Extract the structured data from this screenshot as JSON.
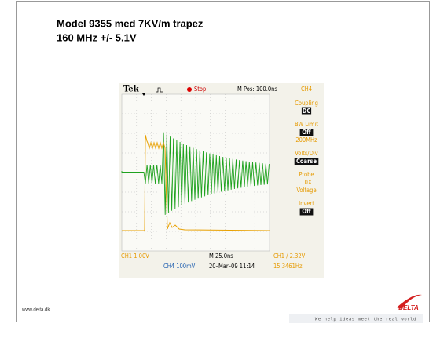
{
  "title_lines": [
    "Model 9355 med 7KV/m trapez",
    "160 MHz +/- 5.1V"
  ],
  "scope": {
    "brand": "Tek",
    "state": "Stop",
    "position": "M Pos: 100.0ns",
    "channel": "CH4",
    "menu": [
      {
        "label": "Coupling",
        "value": "DC"
      },
      {
        "label": "BW Limit",
        "value": "Off",
        "note": "200MHz"
      },
      {
        "label": "Volts/Div",
        "value": "Coarse"
      },
      {
        "label": "Probe",
        "lines": [
          "10X",
          "Voltage"
        ]
      },
      {
        "label": "Invert",
        "value": "Off"
      }
    ],
    "status": {
      "ch1_scale": "CH1  1.00V",
      "timebase": "M 25.0ns",
      "trigger": "CH1 / 2.32V",
      "ch4_scale": "CH4  100mV",
      "datetime": "20–Mar–09 11:14",
      "frequency": "15.3461Hz"
    }
  },
  "footer": {
    "url": "www.delta.dk",
    "logo": "DELTA",
    "tagline": "We help ideas meet the real world"
  }
}
